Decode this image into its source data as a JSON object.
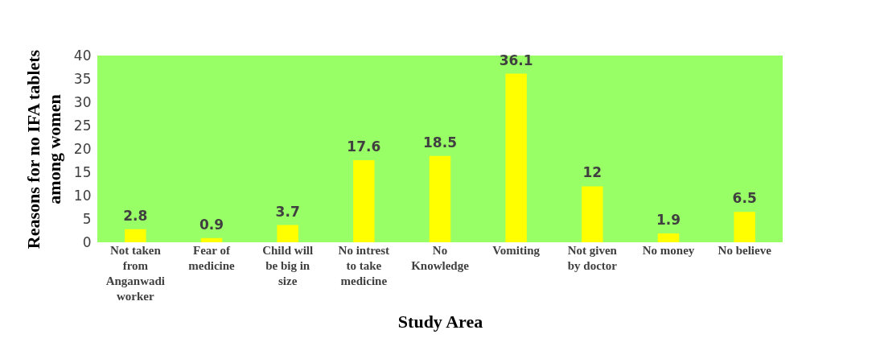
{
  "chart_data": {
    "type": "bar",
    "categories": [
      "Not taken\nfrom\nAnganwadi\nworker",
      "Fear of\nmedicine",
      "Child will\nbe big in\nsize",
      "No intrest\nto take\nmedicine",
      "No\nKnowledge",
      "Vomiting",
      "Not given\nby doctor",
      "No money",
      "No believe"
    ],
    "values": [
      2.8,
      0.9,
      3.7,
      17.6,
      18.5,
      36.1,
      12,
      1.9,
      6.5
    ],
    "color": "#ffff00",
    "xlabel": "Study Area",
    "ylabel": "Reasons for no IFA tablets\namong women",
    "ylim": [
      0,
      40
    ],
    "yticks": [
      0,
      5,
      10,
      15,
      20,
      25,
      30,
      35,
      40
    ],
    "grid": false,
    "data_labels": true
  }
}
